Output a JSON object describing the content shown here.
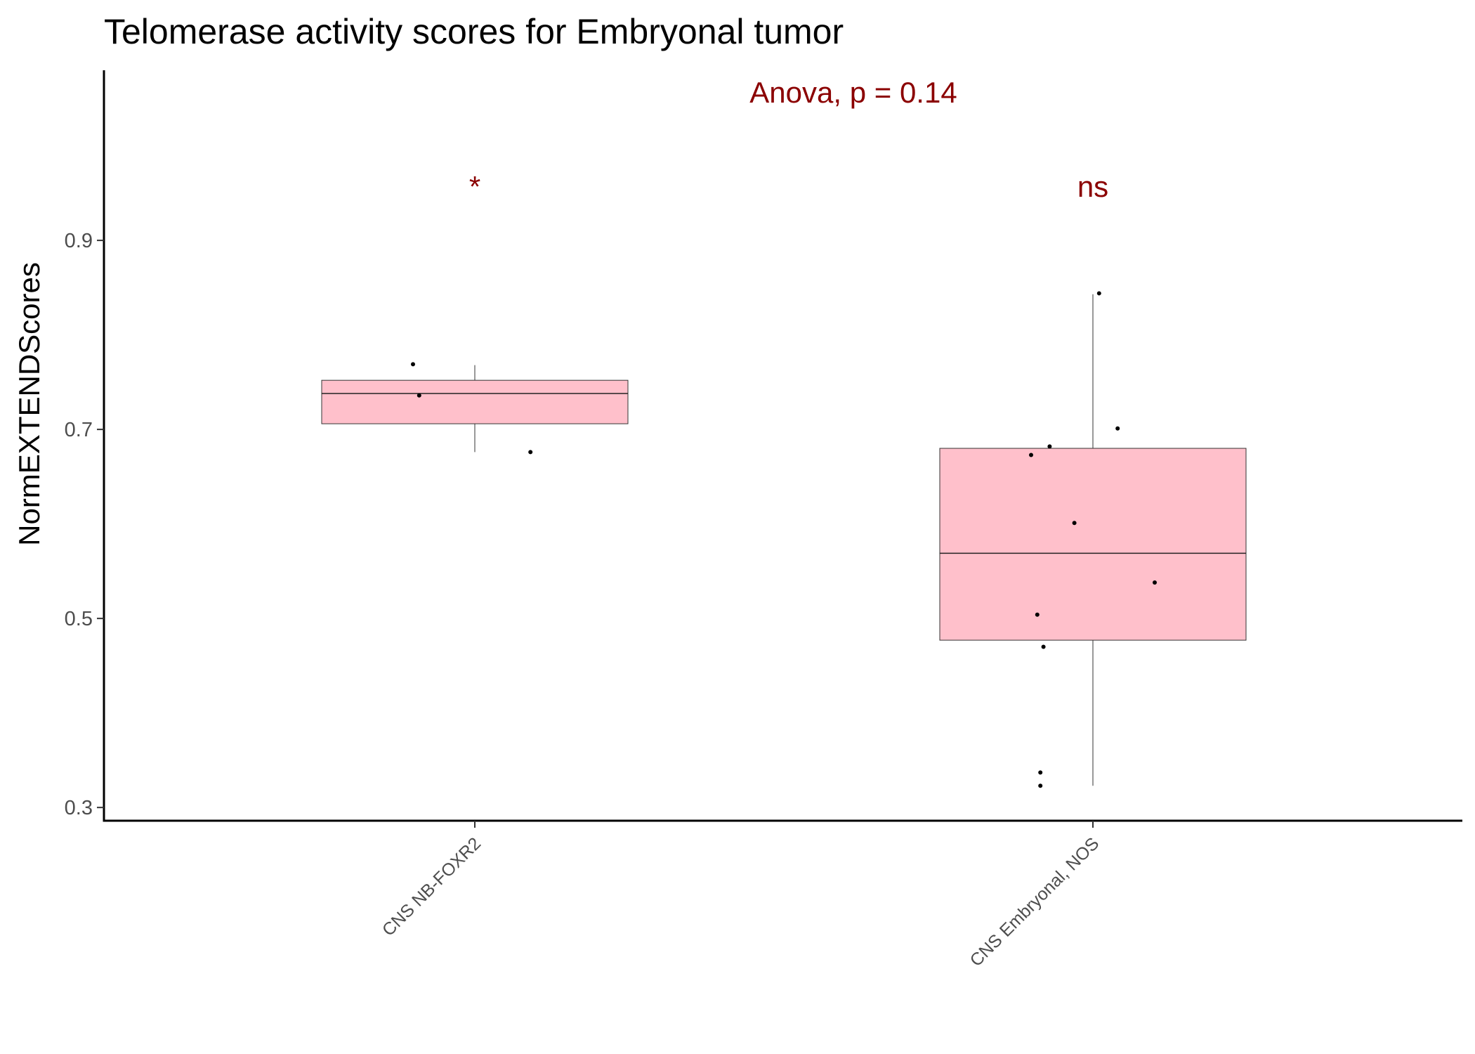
{
  "chart_data": {
    "type": "box",
    "title": "Telomerase activity scores for Embryonal tumor",
    "xlabel": "",
    "ylabel": "NormEXTENDScores",
    "ylim": [
      0.286,
      1.08
    ],
    "yticks": [
      0.3,
      0.5,
      0.7,
      0.9
    ],
    "ytick_labels": [
      "0.3",
      "0.5",
      "0.7",
      "0.9"
    ],
    "categories": [
      "CNS NB-FOXR2",
      "CNS Embryonal, NOS"
    ],
    "boxes": [
      {
        "category": "CNS NB-FOXR2",
        "min": 0.676,
        "q1": 0.706,
        "median": 0.738,
        "q3": 0.752,
        "max": 0.768
      },
      {
        "category": "CNS Embryonal, NOS",
        "min": 0.323,
        "q1": 0.477,
        "median": 0.569,
        "q3": 0.68,
        "max": 0.843
      }
    ],
    "points": [
      {
        "category": "CNS NB-FOXR2",
        "jitter": -0.1,
        "y": 0.769
      },
      {
        "category": "CNS NB-FOXR2",
        "jitter": -0.09,
        "y": 0.736
      },
      {
        "category": "CNS NB-FOXR2",
        "jitter": 0.09,
        "y": 0.676
      },
      {
        "category": "CNS Embryonal, NOS",
        "jitter": 0.01,
        "y": 0.844
      },
      {
        "category": "CNS Embryonal, NOS",
        "jitter": 0.04,
        "y": 0.701
      },
      {
        "category": "CNS Embryonal, NOS",
        "jitter": -0.07,
        "y": 0.682
      },
      {
        "category": "CNS Embryonal, NOS",
        "jitter": -0.1,
        "y": 0.673
      },
      {
        "category": "CNS Embryonal, NOS",
        "jitter": -0.03,
        "y": 0.601
      },
      {
        "category": "CNS Embryonal, NOS",
        "jitter": 0.1,
        "y": 0.538
      },
      {
        "category": "CNS Embryonal, NOS",
        "jitter": -0.09,
        "y": 0.504
      },
      {
        "category": "CNS Embryonal, NOS",
        "jitter": -0.08,
        "y": 0.47
      },
      {
        "category": "CNS Embryonal, NOS",
        "jitter": -0.085,
        "y": 0.337
      },
      {
        "category": "CNS Embryonal, NOS",
        "jitter": -0.085,
        "y": 0.323
      }
    ],
    "annotations": [
      {
        "text": "Anova, p = 0.14",
        "position": "top-center"
      },
      {
        "text": "*",
        "category": "CNS NB-FOXR2"
      },
      {
        "text": "ns",
        "category": "CNS Embryonal, NOS"
      }
    ],
    "colors": {
      "box_fill": "#ffc0cb",
      "annotation": "#8b0000",
      "points": "#000000"
    },
    "grid": false,
    "legend": "none"
  }
}
